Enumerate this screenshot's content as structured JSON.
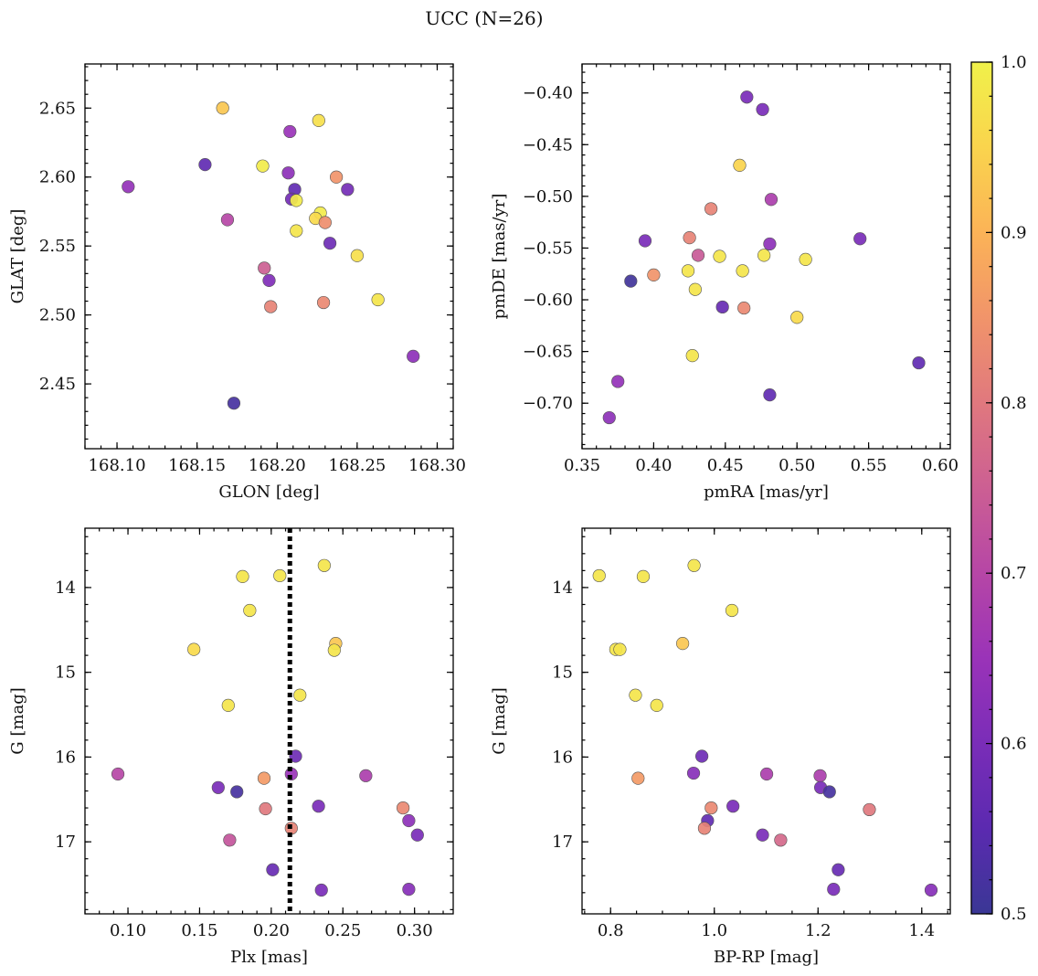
{
  "title": "UCC (N=26)",
  "colormap": {
    "name": "plasma",
    "range": [
      0.5,
      1.0
    ],
    "ticks": [
      0.5,
      0.6,
      0.7,
      0.8,
      0.9,
      1.0
    ],
    "tick_labels": [
      "0.5",
      "0.6",
      "0.7",
      "0.8",
      "0.9",
      "1.0"
    ],
    "stops": [
      [
        0.5,
        "#3a3795"
      ],
      [
        0.55,
        "#5b2ab0"
      ],
      [
        0.6,
        "#7a2db8"
      ],
      [
        0.65,
        "#9a33b8"
      ],
      [
        0.7,
        "#b646a6"
      ],
      [
        0.75,
        "#cc5f93"
      ],
      [
        0.8,
        "#e0787e"
      ],
      [
        0.85,
        "#f1946a"
      ],
      [
        0.9,
        "#fbb357"
      ],
      [
        0.95,
        "#fad44d"
      ],
      [
        1.0,
        "#f0f14a"
      ]
    ]
  },
  "chart_data": [
    {
      "type": "scatter",
      "id": "glon-glat",
      "xlabel": "GLON [deg]",
      "ylabel": "GLAT [deg]",
      "xlim": [
        168.08,
        168.31
      ],
      "ylim": [
        2.403,
        2.682
      ],
      "y_inverted": false,
      "xticks": [
        168.1,
        168.15,
        168.2,
        168.25,
        168.3
      ],
      "xtick_labels": [
        "168.10",
        "168.15",
        "168.20",
        "168.25",
        "168.30"
      ],
      "xminor": 0.01,
      "yticks": [
        2.45,
        2.5,
        2.55,
        2.6,
        2.65
      ],
      "ytick_labels": [
        "2.45",
        "2.50",
        "2.55",
        "2.60",
        "2.65"
      ],
      "yminor": 0.01,
      "points": [
        {
          "x": 168.166,
          "y": 2.65,
          "c": 0.93
        },
        {
          "x": 168.226,
          "y": 2.641,
          "c": 0.97
        },
        {
          "x": 168.208,
          "y": 2.633,
          "c": 0.65
        },
        {
          "x": 168.155,
          "y": 2.609,
          "c": 0.56
        },
        {
          "x": 168.191,
          "y": 2.608,
          "c": 0.99
        },
        {
          "x": 168.207,
          "y": 2.603,
          "c": 0.63
        },
        {
          "x": 168.237,
          "y": 2.6,
          "c": 0.85
        },
        {
          "x": 168.107,
          "y": 2.593,
          "c": 0.64
        },
        {
          "x": 168.211,
          "y": 2.591,
          "c": 0.56
        },
        {
          "x": 168.244,
          "y": 2.591,
          "c": 0.59
        },
        {
          "x": 168.209,
          "y": 2.584,
          "c": 0.59
        },
        {
          "x": 168.212,
          "y": 2.583,
          "c": 0.99
        },
        {
          "x": 168.227,
          "y": 2.574,
          "c": 0.99
        },
        {
          "x": 168.224,
          "y": 2.57,
          "c": 0.96
        },
        {
          "x": 168.169,
          "y": 2.569,
          "c": 0.7
        },
        {
          "x": 168.23,
          "y": 2.567,
          "c": 0.84
        },
        {
          "x": 168.212,
          "y": 2.561,
          "c": 0.98
        },
        {
          "x": 168.233,
          "y": 2.552,
          "c": 0.58
        },
        {
          "x": 168.25,
          "y": 2.543,
          "c": 0.97
        },
        {
          "x": 168.192,
          "y": 2.534,
          "c": 0.75
        },
        {
          "x": 168.195,
          "y": 2.525,
          "c": 0.61
        },
        {
          "x": 168.263,
          "y": 2.511,
          "c": 0.98
        },
        {
          "x": 168.229,
          "y": 2.509,
          "c": 0.83
        },
        {
          "x": 168.196,
          "y": 2.506,
          "c": 0.82
        },
        {
          "x": 168.285,
          "y": 2.47,
          "c": 0.63
        },
        {
          "x": 168.173,
          "y": 2.436,
          "c": 0.52
        }
      ]
    },
    {
      "type": "scatter",
      "id": "pmra-pmde",
      "xlabel": "pmRA [mas/yr]",
      "ylabel": "pmDE [mas/yr]",
      "xlim": [
        0.35,
        0.607
      ],
      "ylim": [
        -0.744,
        -0.372
      ],
      "y_inverted": false,
      "xticks": [
        0.35,
        0.4,
        0.45,
        0.5,
        0.55,
        0.6
      ],
      "xtick_labels": [
        "0.35",
        "0.40",
        "0.45",
        "0.50",
        "0.55",
        "0.60"
      ],
      "xminor": 0.01,
      "yticks": [
        -0.7,
        -0.65,
        -0.6,
        -0.55,
        -0.5,
        -0.45,
        -0.4
      ],
      "ytick_labels": [
        "−0.70",
        "−0.65",
        "−0.60",
        "−0.55",
        "−0.50",
        "−0.45",
        "−0.40"
      ],
      "yminor": 0.01,
      "points": [
        {
          "x": 0.465,
          "y": -0.404,
          "c": 0.6
        },
        {
          "x": 0.476,
          "y": -0.416,
          "c": 0.6
        },
        {
          "x": 0.46,
          "y": -0.47,
          "c": 0.95
        },
        {
          "x": 0.482,
          "y": -0.503,
          "c": 0.68
        },
        {
          "x": 0.44,
          "y": -0.512,
          "c": 0.82
        },
        {
          "x": 0.425,
          "y": -0.54,
          "c": 0.82
        },
        {
          "x": 0.394,
          "y": -0.543,
          "c": 0.6
        },
        {
          "x": 0.544,
          "y": -0.541,
          "c": 0.6
        },
        {
          "x": 0.481,
          "y": -0.546,
          "c": 0.63
        },
        {
          "x": 0.431,
          "y": -0.557,
          "c": 0.74
        },
        {
          "x": 0.446,
          "y": -0.558,
          "c": 0.98
        },
        {
          "x": 0.477,
          "y": -0.557,
          "c": 0.98
        },
        {
          "x": 0.506,
          "y": -0.561,
          "c": 0.98
        },
        {
          "x": 0.424,
          "y": -0.572,
          "c": 0.98
        },
        {
          "x": 0.462,
          "y": -0.572,
          "c": 0.98
        },
        {
          "x": 0.4,
          "y": -0.576,
          "c": 0.85
        },
        {
          "x": 0.384,
          "y": -0.582,
          "c": 0.51
        },
        {
          "x": 0.429,
          "y": -0.59,
          "c": 0.98
        },
        {
          "x": 0.448,
          "y": -0.607,
          "c": 0.57
        },
        {
          "x": 0.463,
          "y": -0.608,
          "c": 0.83
        },
        {
          "x": 0.5,
          "y": -0.617,
          "c": 0.96
        },
        {
          "x": 0.427,
          "y": -0.654,
          "c": 0.98
        },
        {
          "x": 0.585,
          "y": -0.661,
          "c": 0.56
        },
        {
          "x": 0.375,
          "y": -0.679,
          "c": 0.64
        },
        {
          "x": 0.481,
          "y": -0.692,
          "c": 0.56
        },
        {
          "x": 0.369,
          "y": -0.714,
          "c": 0.63
        }
      ]
    },
    {
      "type": "scatter",
      "id": "plx-g",
      "xlabel": "Plx [mas]",
      "ylabel": "G [mag]",
      "xlim": [
        0.07,
        0.327
      ],
      "ylim": [
        13.3,
        17.85
      ],
      "y_inverted": true,
      "vline": {
        "x": 0.213,
        "style": "dotted"
      },
      "xticks": [
        0.1,
        0.15,
        0.2,
        0.25,
        0.3
      ],
      "xtick_labels": [
        "0.10",
        "0.15",
        "0.20",
        "0.25",
        "0.30"
      ],
      "xminor": 0.01,
      "yticks": [
        14,
        15,
        16,
        17
      ],
      "ytick_labels": [
        "14",
        "15",
        "16",
        "17"
      ],
      "yminor": 0.2,
      "points": [
        {
          "x": 0.237,
          "y": 13.74,
          "c": 0.98
        },
        {
          "x": 0.18,
          "y": 13.87,
          "c": 0.98
        },
        {
          "x": 0.206,
          "y": 13.86,
          "c": 0.98
        },
        {
          "x": 0.185,
          "y": 14.27,
          "c": 0.98
        },
        {
          "x": 0.245,
          "y": 14.66,
          "c": 0.93
        },
        {
          "x": 0.146,
          "y": 14.73,
          "c": 0.96
        },
        {
          "x": 0.244,
          "y": 14.74,
          "c": 0.98
        },
        {
          "x": 0.22,
          "y": 15.27,
          "c": 0.98
        },
        {
          "x": 0.17,
          "y": 15.39,
          "c": 0.98
        },
        {
          "x": 0.217,
          "y": 15.99,
          "c": 0.58
        },
        {
          "x": 0.093,
          "y": 16.2,
          "c": 0.7
        },
        {
          "x": 0.214,
          "y": 16.2,
          "c": 0.65
        },
        {
          "x": 0.195,
          "y": 16.25,
          "c": 0.86
        },
        {
          "x": 0.266,
          "y": 16.22,
          "c": 0.68
        },
        {
          "x": 0.163,
          "y": 16.36,
          "c": 0.6
        },
        {
          "x": 0.176,
          "y": 16.41,
          "c": 0.52
        },
        {
          "x": 0.233,
          "y": 16.58,
          "c": 0.6
        },
        {
          "x": 0.196,
          "y": 16.61,
          "c": 0.8
        },
        {
          "x": 0.292,
          "y": 16.6,
          "c": 0.83
        },
        {
          "x": 0.296,
          "y": 16.75,
          "c": 0.63
        },
        {
          "x": 0.214,
          "y": 16.84,
          "c": 0.82
        },
        {
          "x": 0.302,
          "y": 16.92,
          "c": 0.6
        },
        {
          "x": 0.171,
          "y": 16.98,
          "c": 0.73
        },
        {
          "x": 0.201,
          "y": 17.33,
          "c": 0.57
        },
        {
          "x": 0.235,
          "y": 17.57,
          "c": 0.6
        },
        {
          "x": 0.296,
          "y": 17.56,
          "c": 0.62
        }
      ]
    },
    {
      "type": "scatter",
      "id": "bprp-g",
      "xlabel": "BP-RP [mag]",
      "ylabel": "G [mag]",
      "xlim": [
        0.745,
        1.455
      ],
      "ylim": [
        13.3,
        17.85
      ],
      "y_inverted": true,
      "xticks": [
        0.8,
        1.0,
        1.2,
        1.4
      ],
      "xtick_labels": [
        "0.8",
        "1.0",
        "1.2",
        "1.4"
      ],
      "xminor": 0.05,
      "yticks": [
        14,
        15,
        16,
        17
      ],
      "ytick_labels": [
        "14",
        "15",
        "16",
        "17"
      ],
      "yminor": 0.2,
      "points": [
        {
          "x": 0.778,
          "y": 13.86,
          "c": 0.98
        },
        {
          "x": 0.863,
          "y": 13.87,
          "c": 0.98
        },
        {
          "x": 0.961,
          "y": 13.74,
          "c": 0.98
        },
        {
          "x": 1.034,
          "y": 14.27,
          "c": 0.98
        },
        {
          "x": 0.939,
          "y": 14.66,
          "c": 0.93
        },
        {
          "x": 0.81,
          "y": 14.73,
          "c": 0.98
        },
        {
          "x": 0.818,
          "y": 14.73,
          "c": 0.98
        },
        {
          "x": 0.848,
          "y": 15.27,
          "c": 0.98
        },
        {
          "x": 0.889,
          "y": 15.39,
          "c": 0.98
        },
        {
          "x": 0.976,
          "y": 15.99,
          "c": 0.58
        },
        {
          "x": 0.96,
          "y": 16.19,
          "c": 0.62
        },
        {
          "x": 1.101,
          "y": 16.2,
          "c": 0.68
        },
        {
          "x": 0.853,
          "y": 16.25,
          "c": 0.86
        },
        {
          "x": 1.204,
          "y": 16.22,
          "c": 0.68
        },
        {
          "x": 1.205,
          "y": 16.36,
          "c": 0.6
        },
        {
          "x": 1.222,
          "y": 16.41,
          "c": 0.52
        },
        {
          "x": 1.036,
          "y": 16.58,
          "c": 0.6
        },
        {
          "x": 0.994,
          "y": 16.6,
          "c": 0.83
        },
        {
          "x": 1.299,
          "y": 16.62,
          "c": 0.8
        },
        {
          "x": 0.987,
          "y": 16.75,
          "c": 0.56
        },
        {
          "x": 0.981,
          "y": 16.84,
          "c": 0.82
        },
        {
          "x": 1.093,
          "y": 16.92,
          "c": 0.6
        },
        {
          "x": 1.128,
          "y": 16.98,
          "c": 0.77
        },
        {
          "x": 1.239,
          "y": 17.33,
          "c": 0.57
        },
        {
          "x": 1.23,
          "y": 17.56,
          "c": 0.6
        },
        {
          "x": 1.418,
          "y": 17.57,
          "c": 0.62
        }
      ]
    }
  ]
}
